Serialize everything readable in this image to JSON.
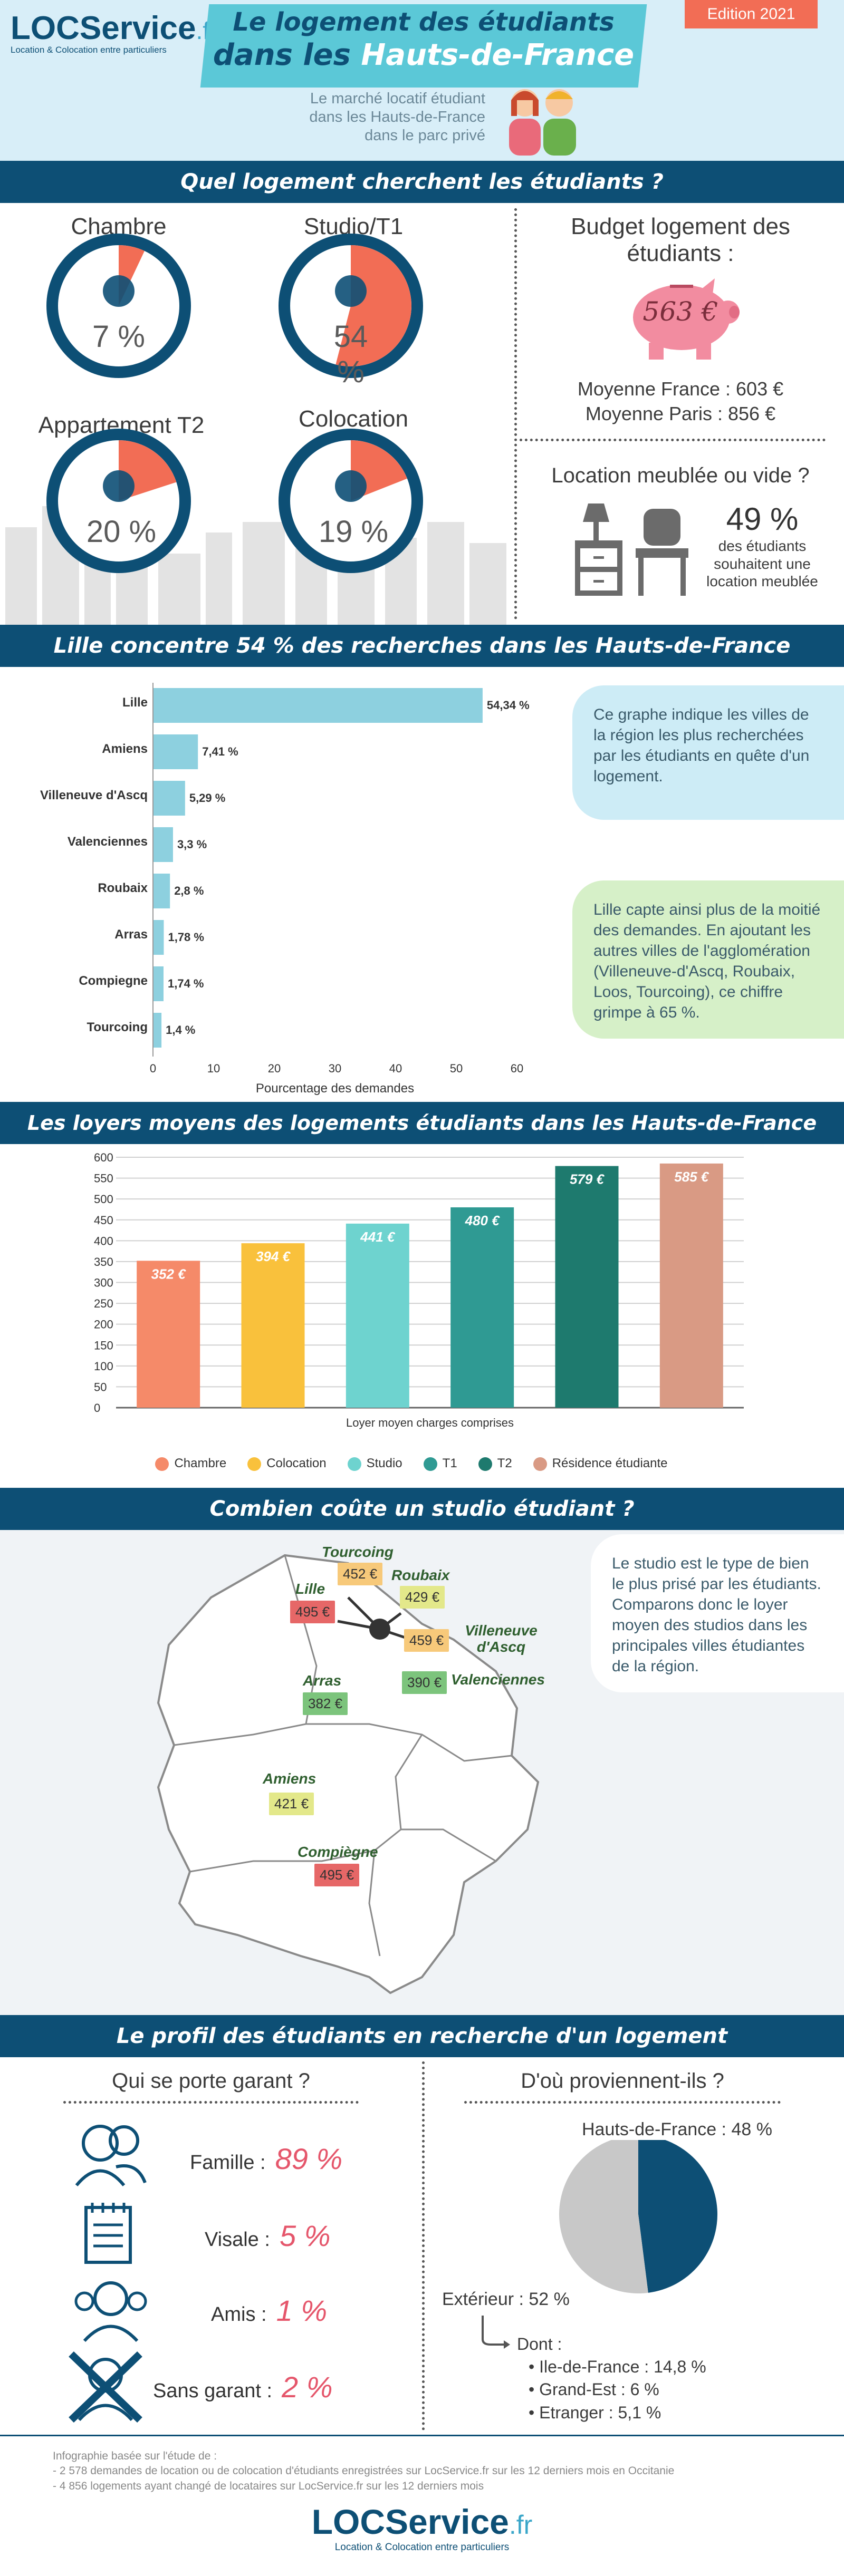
{
  "header": {
    "logo_main": "LOCService",
    "logo_suffix": ".fr",
    "logo_tagline": "Location & Colocation entre particuliers",
    "title_line1": "Le logement des étudiants",
    "title_line2_prefix": "dans les ",
    "title_line2_highlight": "Hauts-de-France",
    "edition": "Edition 2021",
    "subtitle_l1": "Le marché locatif étudiant",
    "subtitle_l2": "dans les Hauts-de-France",
    "subtitle_l3": "dans le parc privé"
  },
  "section1": {
    "title": "Quel logement cherchent les étudiants ?",
    "types": [
      {
        "label": "Chambre",
        "pct": "7 %",
        "value": 7
      },
      {
        "label": "Studio/T1",
        "pct": "54 %",
        "value": 54
      },
      {
        "label": "Appartement T2",
        "pct": "20 %",
        "value": 20
      },
      {
        "label": "Colocation",
        "pct": "19 %",
        "value": 19
      }
    ],
    "budget_title_l1": "Budget logement des",
    "budget_title_l2": "étudiants :",
    "budget_value": "563 €",
    "moyenne_france": "Moyenne France : 603 €",
    "moyenne_paris": "Moyenne Paris : 856 €",
    "meuble_title": "Location meublée ou vide ?",
    "meuble_pct": "49 %",
    "meuble_l1": "des étudiants",
    "meuble_l2": "souhaitent une",
    "meuble_l3": "location meublée"
  },
  "section2": {
    "title": "Lille concentre 54 % des recherches dans les Hauts-de-France",
    "note1": "Ce graphe indique les villes de la région les plus recherchées par les étudiants en quête d'un logement.",
    "note2": "Lille capte ainsi plus de la moitié des demandes. En ajoutant les autres villes de l'agglomération (Villeneuve-d'Ascq, Roubaix, Loos, Tourcoing), ce chiffre grimpe à 65 %."
  },
  "section3": {
    "title": "Les loyers moyens des logements étudiants dans les Hauts-de-France"
  },
  "section4": {
    "title": "Combien coûte un studio étudiant ?",
    "note": "Le studio est le type de bien le plus prisé par les étudiants. Comparons donc le loyer moyen des studios dans les principales villes étudiantes de la région.",
    "cities": [
      {
        "name": "Tourcoing",
        "price": "452 €"
      },
      {
        "name": "Roubaix",
        "price": "429 €"
      },
      {
        "name": "Lille",
        "price": "495 €"
      },
      {
        "name": "Villeneuve d'Ascq",
        "price": "459 €"
      },
      {
        "name": "Valenciennes",
        "price": "390 €"
      },
      {
        "name": "Arras",
        "price": "382 €"
      },
      {
        "name": "Amiens",
        "price": "421 €"
      },
      {
        "name": "Compiègne",
        "price": "495 €"
      }
    ]
  },
  "section5": {
    "title": "Le profil des étudiants en recherche d'un logement",
    "garant_title": "Qui se porte garant ?",
    "garants": [
      {
        "label": "Famille :",
        "value": "89 %"
      },
      {
        "label": "Visale :",
        "value": "5 %"
      },
      {
        "label": "Amis :",
        "value": "1 %"
      },
      {
        "label": "Sans garant :",
        "value": "2 %"
      }
    ],
    "origin_title": "D'où proviennent-ils ?",
    "origin_hdf": "Hauts-de-France : 48 %",
    "origin_ext": "Extérieur : 52 %",
    "dont": "Dont :",
    "dont_items": [
      "Ile-de-France : 14,8 %",
      "Grand-Est : 6 %",
      "Etranger : 5,1 %"
    ]
  },
  "footer": {
    "l1": "Infographie basée sur l'étude de :",
    "l2": "- 2 578 demandes de location ou de colocation d'étudiants enregistrées sur LocService.fr sur les 12 derniers mois en Occitanie",
    "l3": "- 4 856 logements ayant changé de locataires sur LocService.fr sur les 12 derniers mois",
    "logo_main": "LOCService",
    "logo_suffix": ".fr",
    "logo_tagline": "Location & Colocation entre particuliers"
  },
  "colors": {
    "navy": "#0d4f75",
    "teal": "#5bc8d7",
    "coral": "#f26d55",
    "pink": "#e5566b",
    "sky": "#d8eef8",
    "green_note": "#d6f0c8"
  },
  "chart_data": [
    {
      "type": "bar",
      "orientation": "horizontal",
      "categories": [
        "Lille",
        "Amiens",
        "Villeneuve d'Ascq",
        "Valenciennes",
        "Roubaix",
        "Arras",
        "Compiegne",
        "Tourcoing"
      ],
      "values": [
        54.34,
        7.41,
        5.29,
        3.3,
        2.8,
        1.78,
        1.74,
        1.4
      ],
      "data_labels": [
        "54,34 %",
        "7,41 %",
        "5,29 %",
        "3,3 %",
        "2,8 %",
        "1,78 %",
        "1,74 %",
        "1,4 %"
      ],
      "xlabel": "Pourcentage des demandes",
      "xlim": [
        0,
        60
      ],
      "xticks": [
        0,
        10,
        20,
        30,
        40,
        50,
        60
      ]
    },
    {
      "type": "bar",
      "categories": [
        "Chambre",
        "Colocation",
        "Studio",
        "T1",
        "T2",
        "Résidence étudiante"
      ],
      "values": [
        352,
        394,
        441,
        480,
        579,
        585
      ],
      "data_labels": [
        "352 €",
        "394 €",
        "441 €",
        "480 €",
        "579 €",
        "585 €"
      ],
      "colors": [
        "#f58a69",
        "#f9c13c",
        "#6ed3cf",
        "#2f9a93",
        "#1e7a6e",
        "#d99a84"
      ],
      "xlabel": "Loyer moyen charges comprises",
      "ylim": [
        0,
        600
      ],
      "yticks": [
        0,
        50,
        100,
        150,
        200,
        250,
        300,
        350,
        400,
        450,
        500,
        550,
        600
      ],
      "grid": true,
      "legend": "bottom"
    },
    {
      "type": "pie",
      "categories": [
        "Hauts-de-France",
        "Extérieur"
      ],
      "values": [
        48,
        52
      ],
      "colors": [
        "#0d4f75",
        "#c8c8c8"
      ]
    }
  ]
}
